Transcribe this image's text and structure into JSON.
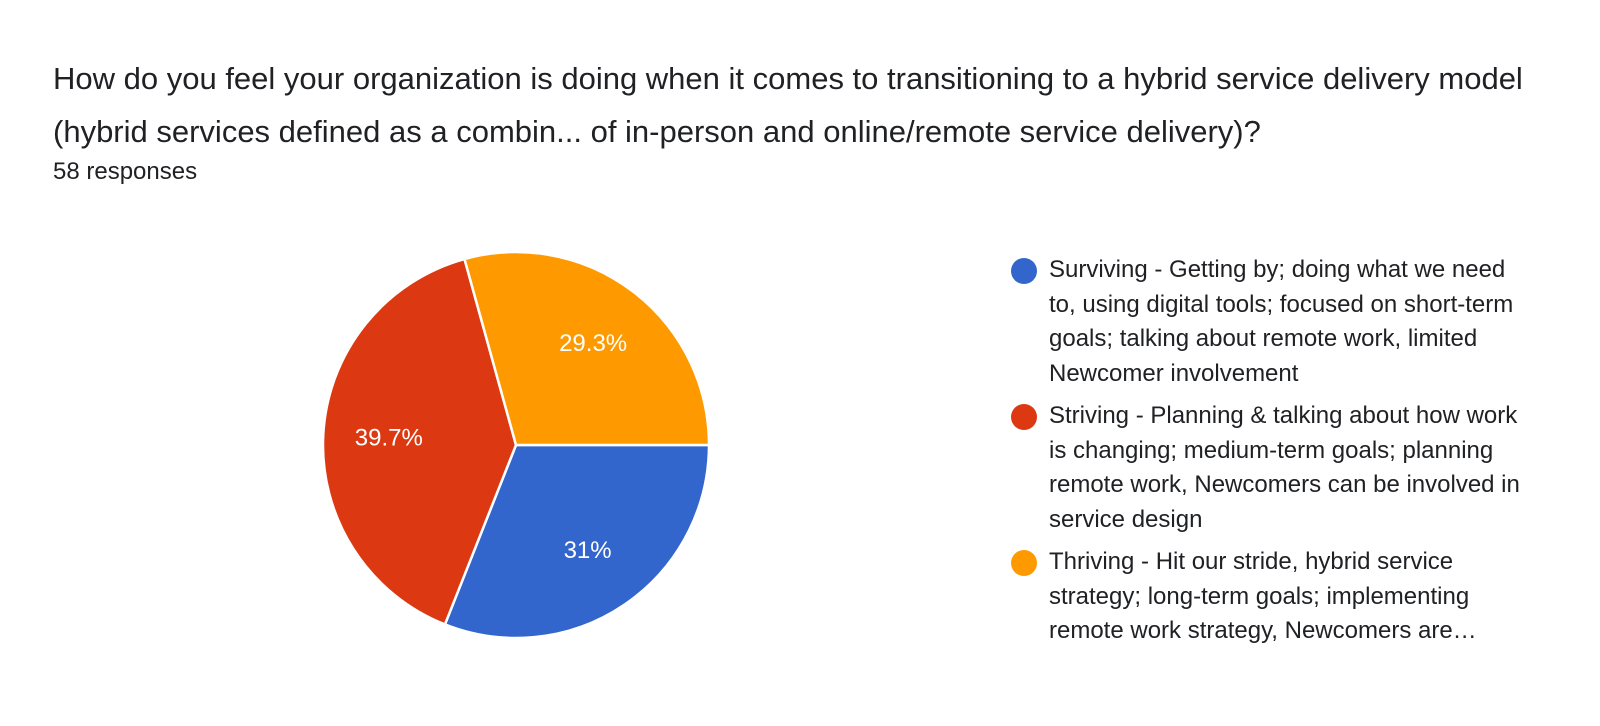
{
  "question": {
    "title": "How do you feel your organization is doing when it comes to transitioning to a hybrid service delivery model (hybrid services defined as a combin... of in-person and online/remote service delivery)?",
    "responses": "58 responses"
  },
  "chart_data": {
    "type": "pie",
    "total_responses": 58,
    "slices": [
      {
        "name": "Surviving - Getting by; doing what we need to, using digital tools; focused on short-term goals; talking about remote work, limited Newcomer involvement",
        "value": 31,
        "label": "31%",
        "color": "#3366cc"
      },
      {
        "name": "Striving - Planning & talking about how work is changing; medium-term goals; planning remote work, Newcomers can be involved in service design",
        "value": 39.7,
        "label": "39.7%",
        "color": "#dc3912"
      },
      {
        "name": "Thriving - Hit our stride, hybrid service strategy; long-term goals; implementing remote work strategy, Newcomers are…",
        "value": 29.3,
        "label": "29.3%",
        "color": "#ff9900"
      }
    ],
    "legend_position": "right"
  }
}
